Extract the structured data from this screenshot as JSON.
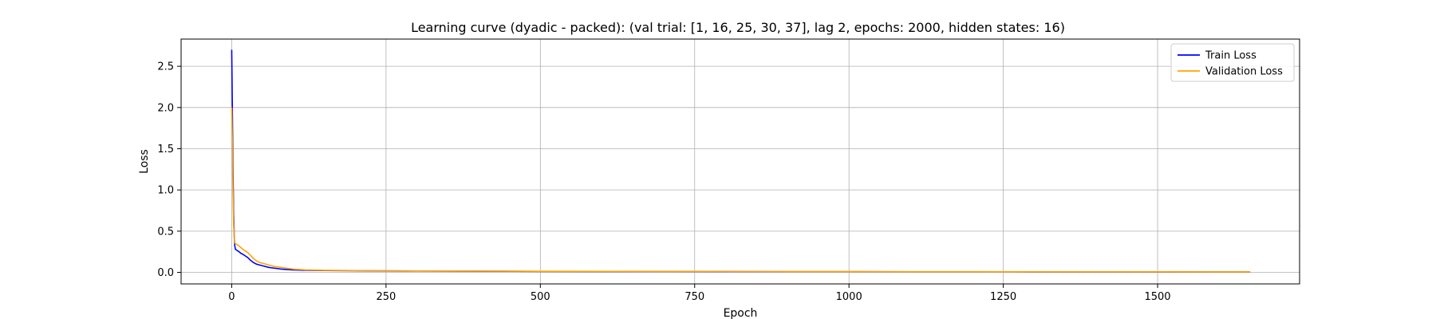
{
  "chart_data": {
    "type": "line",
    "title": "Learning curve (dyadic - packed): (val trial: [1, 16, 25, 30, 37], lag 2, epochs: 2000, hidden states: 16)",
    "xlabel": "Epoch",
    "ylabel": "Loss",
    "xlim": [
      -82,
      1730
    ],
    "ylim": [
      -0.14,
      2.83
    ],
    "xticks": [
      0,
      250,
      500,
      750,
      1000,
      1250,
      1500
    ],
    "yticks": [
      0.0,
      0.5,
      1.0,
      1.5,
      2.0,
      2.5
    ],
    "xtick_labels": [
      "0",
      "250",
      "500",
      "750",
      "1000",
      "1250",
      "1500"
    ],
    "ytick_labels": [
      "0.0",
      "0.5",
      "1.0",
      "1.5",
      "2.0",
      "2.5"
    ],
    "grid": true,
    "legend_position": "top-right",
    "series": [
      {
        "name": "Train Loss",
        "color": "#0000ff",
        "x": [
          0,
          1,
          2,
          3,
          4,
          5,
          6,
          8,
          10,
          12,
          15,
          18,
          22,
          26,
          30,
          35,
          40,
          45,
          50,
          60,
          70,
          80,
          90,
          100,
          120,
          150,
          200,
          250,
          300,
          400,
          500,
          600,
          700,
          800,
          900,
          1000,
          1100,
          1200,
          1300,
          1400,
          1500,
          1600,
          1650
        ],
        "y": [
          2.7,
          2.0,
          1.3,
          0.75,
          0.45,
          0.32,
          0.28,
          0.27,
          0.26,
          0.25,
          0.23,
          0.22,
          0.2,
          0.18,
          0.15,
          0.12,
          0.1,
          0.09,
          0.08,
          0.06,
          0.05,
          0.04,
          0.035,
          0.03,
          0.025,
          0.022,
          0.02,
          0.018,
          0.016,
          0.014,
          0.012,
          0.011,
          0.01,
          0.009,
          0.008,
          0.008,
          0.007,
          0.007,
          0.006,
          0.006,
          0.006,
          0.005,
          0.005
        ]
      },
      {
        "name": "Validation Loss",
        "color": "#ffa500",
        "x": [
          0,
          1,
          2,
          3,
          4,
          5,
          6,
          8,
          10,
          12,
          15,
          18,
          22,
          26,
          30,
          35,
          40,
          45,
          50,
          60,
          70,
          80,
          90,
          100,
          120,
          150,
          200,
          250,
          300,
          400,
          500,
          600,
          700,
          800,
          900,
          1000,
          1100,
          1200,
          1300,
          1400,
          1500,
          1600,
          1650
        ],
        "y": [
          2.0,
          1.6,
          1.0,
          0.6,
          0.42,
          0.36,
          0.35,
          0.34,
          0.33,
          0.32,
          0.3,
          0.28,
          0.26,
          0.24,
          0.21,
          0.17,
          0.14,
          0.12,
          0.11,
          0.09,
          0.07,
          0.06,
          0.05,
          0.04,
          0.03,
          0.025,
          0.022,
          0.02,
          0.018,
          0.015,
          0.013,
          0.012,
          0.011,
          0.01,
          0.009,
          0.009,
          0.008,
          0.008,
          0.007,
          0.007,
          0.007,
          0.006,
          0.006
        ]
      }
    ]
  }
}
